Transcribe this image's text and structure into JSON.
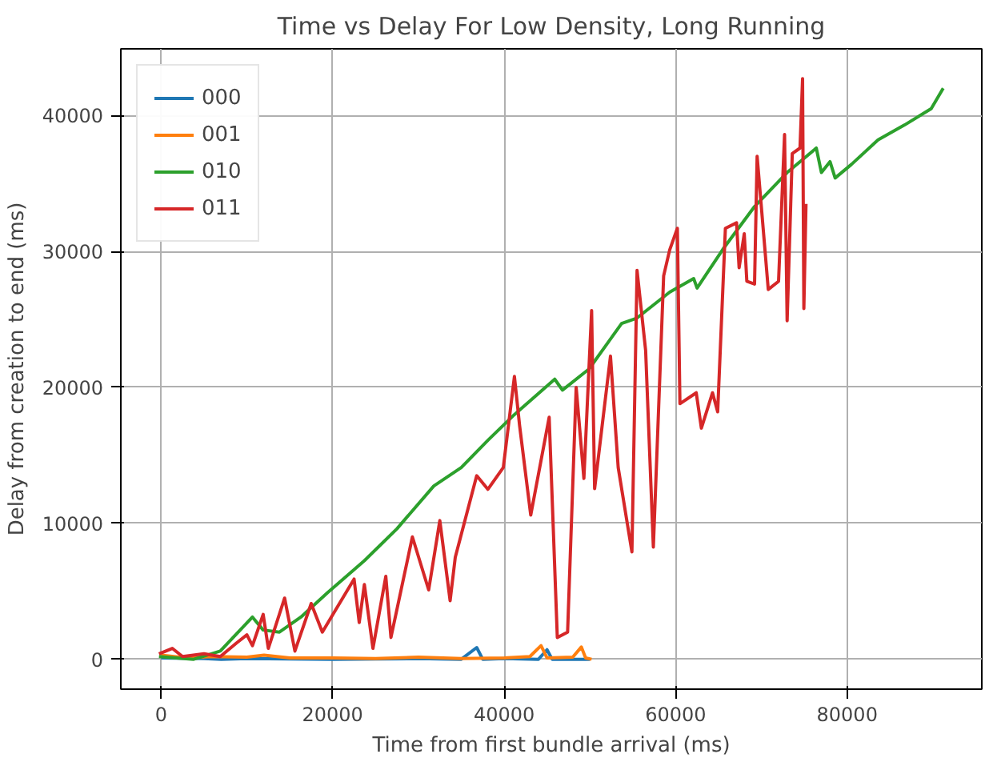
{
  "chart_data": {
    "type": "line",
    "title": "Time vs Delay For Low Density, Long Running",
    "xlabel": "Time from first bundle arrival (ms)",
    "ylabel": "Delay from creation to end (ms)",
    "xlim": [
      -4700,
      95700
    ],
    "ylim": [
      -2200,
      44900
    ],
    "xticks": [
      0,
      20000,
      40000,
      60000,
      80000
    ],
    "yticks": [
      0,
      10000,
      20000,
      30000,
      40000
    ],
    "grid": true,
    "legend": "top left",
    "line_style": "solid",
    "series": [
      {
        "name": "000",
        "color": "#1f77b4",
        "x": [
          0,
          5000,
          7000,
          10000,
          20000,
          30000,
          35000,
          36800,
          37500,
          40000,
          44000,
          45000,
          45600,
          50000
        ],
        "values": [
          100,
          50,
          0,
          50,
          0,
          50,
          0,
          860,
          0,
          50,
          0,
          700,
          0,
          0
        ]
      },
      {
        "name": "001",
        "color": "#ff7f0e",
        "x": [
          0,
          3000,
          6000,
          10000,
          12000,
          15000,
          20000,
          25000,
          30000,
          35000,
          40000,
          43000,
          44300,
          45000,
          48000,
          49000,
          49500,
          50200
        ],
        "values": [
          300,
          100,
          200,
          150,
          300,
          100,
          100,
          50,
          150,
          50,
          100,
          200,
          1000,
          100,
          150,
          900,
          100,
          0
        ]
      },
      {
        "name": "010",
        "color": "#2ca02c",
        "x": [
          -250,
          3800,
          6900,
          10650,
          11900,
          13800,
          16300,
          19400,
          23700,
          27500,
          31800,
          35000,
          38100,
          41200,
          45900,
          46800,
          49900,
          53700,
          55500,
          59300,
          62100,
          62500,
          65500,
          69200,
          73000,
          76400,
          77000,
          78000,
          78600,
          80500,
          83600,
          86700,
          89800,
          91200
        ],
        "values": [
          200,
          0,
          600,
          3100,
          2150,
          2000,
          3100,
          4900,
          7250,
          9600,
          12750,
          14100,
          16100,
          18000,
          20600,
          19800,
          21350,
          24700,
          25100,
          27000,
          28000,
          27300,
          30150,
          33300,
          35800,
          37600,
          35800,
          36600,
          35400,
          36400,
          38200,
          39300,
          40500,
          42000
        ]
      },
      {
        "name": "011",
        "color": "#d62728",
        "x": [
          -250,
          1300,
          2500,
          5000,
          6900,
          8800,
          10000,
          10650,
          11900,
          12500,
          14400,
          15600,
          17500,
          18800,
          22500,
          23100,
          23700,
          24700,
          26200,
          26800,
          29300,
          31200,
          32500,
          33700,
          34300,
          36800,
          38100,
          39900,
          41200,
          41800,
          43100,
          45250,
          46200,
          47400,
          48400,
          49300,
          50200,
          50550,
          52400,
          53300,
          54900,
          55500,
          56500,
          57400,
          58600,
          59300,
          60200,
          60500,
          62400,
          63000,
          64300,
          64900,
          65800,
          67100,
          67400,
          68000,
          68300,
          69200,
          69500,
          70800,
          72000,
          72700,
          73000,
          73600,
          74500,
          74800,
          74950,
          75200
        ],
        "values": [
          400,
          800,
          200,
          400,
          200,
          1200,
          1800,
          1000,
          3300,
          800,
          4500,
          600,
          4100,
          2000,
          5900,
          2700,
          5500,
          800,
          6100,
          1600,
          9000,
          5100,
          10200,
          4300,
          7500,
          13500,
          12500,
          14100,
          20800,
          17200,
          10600,
          17800,
          1600,
          2000,
          20000,
          13300,
          25650,
          12550,
          22300,
          14100,
          7900,
          28600,
          22700,
          8250,
          28200,
          30100,
          31700,
          18800,
          19600,
          17000,
          19600,
          18200,
          31700,
          32100,
          28800,
          31300,
          27800,
          27600,
          37000,
          27200,
          27800,
          38600,
          24900,
          37200,
          37600,
          42700,
          25800,
          33500
        ]
      }
    ]
  }
}
